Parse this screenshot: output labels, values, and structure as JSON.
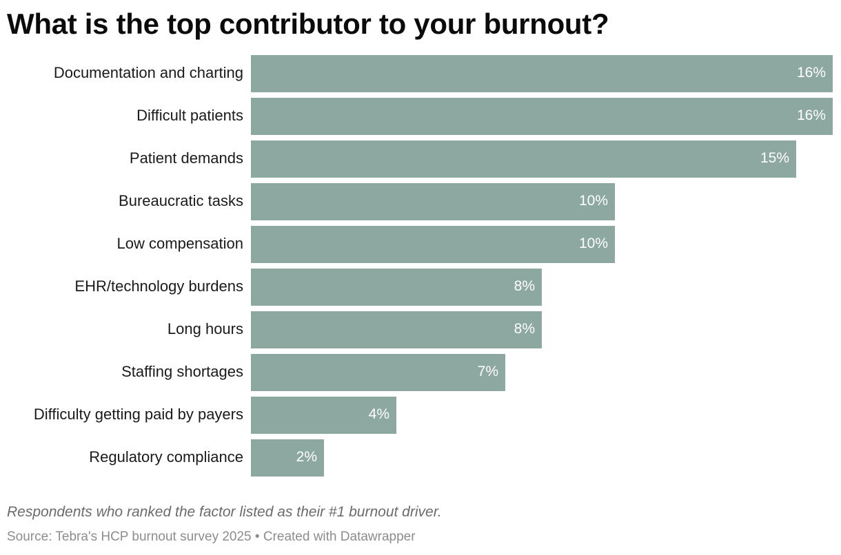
{
  "chart_data": {
    "type": "bar",
    "orientation": "horizontal",
    "title": "What is the top contributor to your burnout?",
    "categories": [
      "Documentation and charting",
      "Difficult patients",
      "Patient demands",
      "Bureaucratic tasks",
      "Low compensation",
      "EHR/technology burdens",
      "Long hours",
      "Staffing shortages",
      "Difficulty getting paid by payers",
      "Regulatory compliance"
    ],
    "values": [
      16,
      16,
      15,
      10,
      10,
      8,
      8,
      7,
      4,
      2
    ],
    "value_labels": [
      "16%",
      "16%",
      "15%",
      "10%",
      "10%",
      "8%",
      "8%",
      "7%",
      "4%",
      "2%"
    ],
    "xlim": [
      0,
      16
    ],
    "grid": false,
    "bar_color": "#8ca8a1",
    "label_color": "#ffffff"
  },
  "notes": {
    "description": "Respondents who ranked the factor listed as their #1 burnout driver.",
    "source": "Source: Tebra's HCP burnout survey 2025 • Created with Datawrapper"
  }
}
